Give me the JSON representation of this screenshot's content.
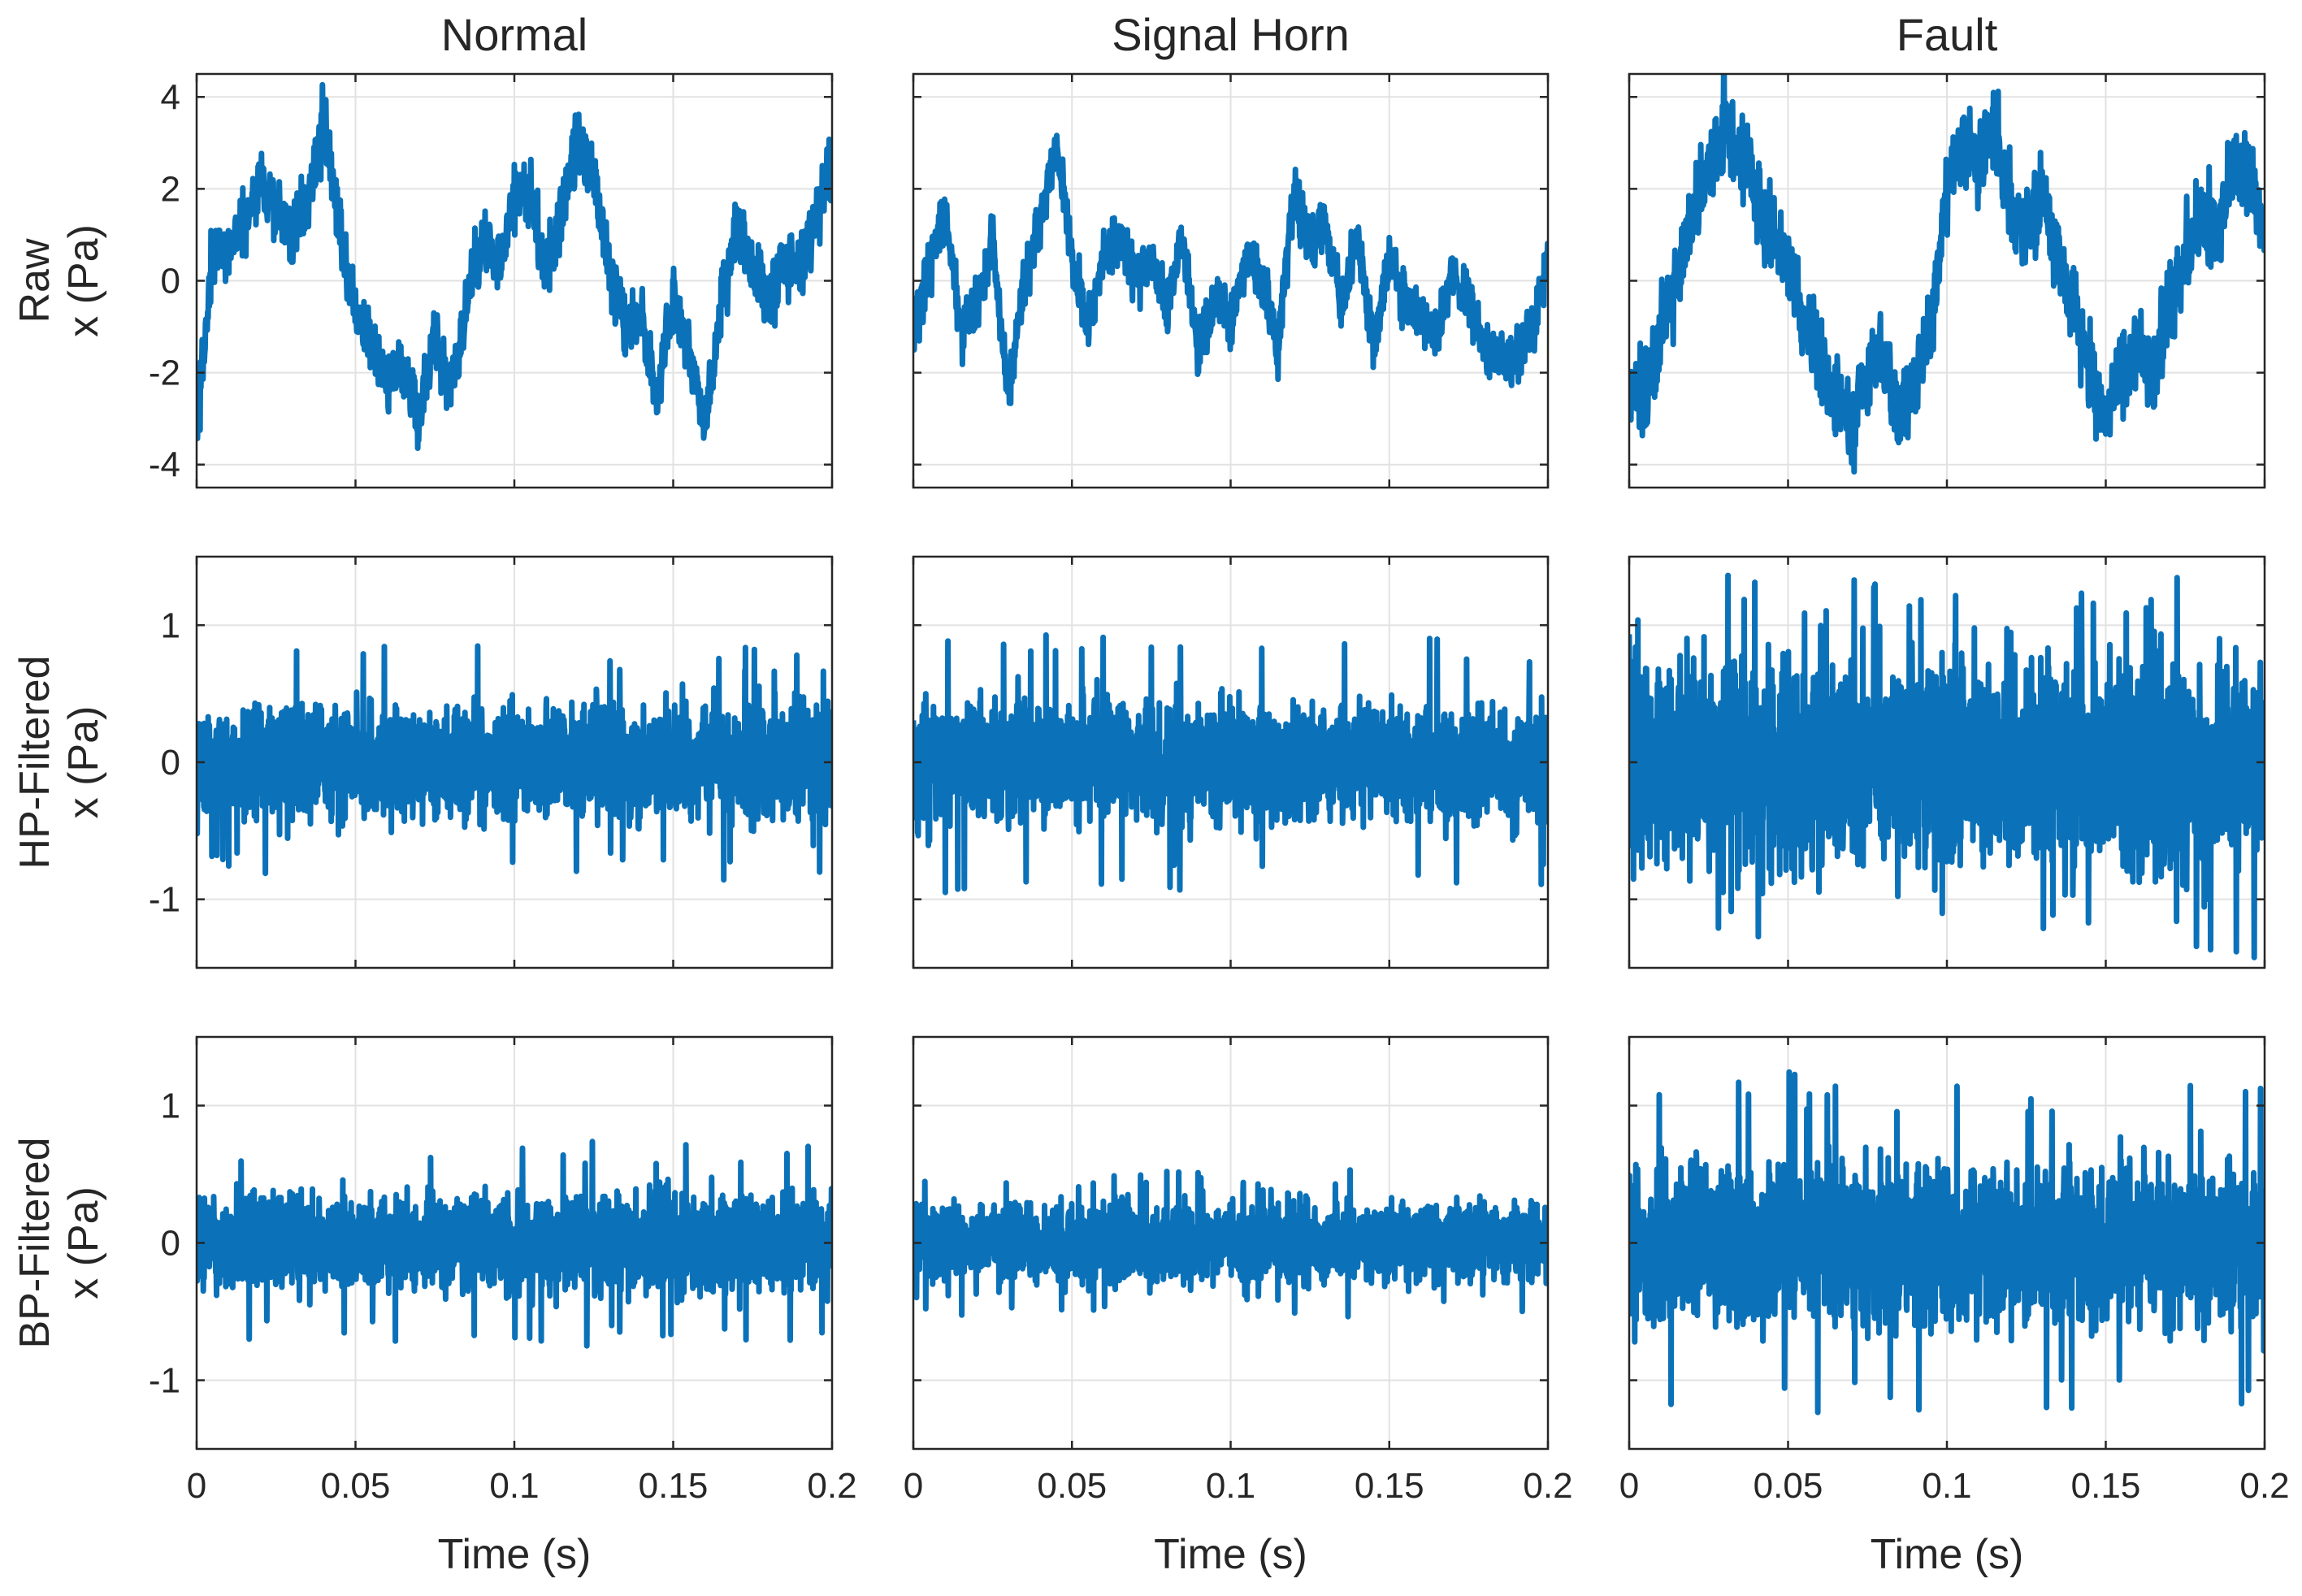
{
  "chart_data": {
    "type": "line",
    "layout": "3x3 grid of small multiples",
    "columns": [
      "Normal",
      "Signal Horn",
      "Fault"
    ],
    "rows": [
      {
        "id": "raw",
        "label_lines": [
          "Raw",
          "x (Pa)"
        ],
        "ylim": [
          -4.5,
          4.5
        ],
        "yticks": [
          4,
          2,
          0,
          -2,
          -4
        ],
        "ytick_labels": [
          "4",
          "2",
          "0",
          "-2",
          "-4"
        ]
      },
      {
        "id": "hp",
        "label_lines": [
          "HP-Filtered",
          "x (Pa)"
        ],
        "ylim": [
          -1.5,
          1.5
        ],
        "yticks": [
          1,
          0,
          -1
        ],
        "ytick_labels": [
          "1",
          "0",
          "-1"
        ]
      },
      {
        "id": "bp",
        "label_lines": [
          "BP-Filtered",
          "x (Pa)"
        ],
        "ylim": [
          -1.5,
          1.5
        ],
        "yticks": [
          1,
          0,
          -1
        ],
        "ytick_labels": [
          "1",
          "0",
          "-1"
        ]
      }
    ],
    "xlabel": "Time (s)",
    "xlim": [
      0,
      0.2
    ],
    "xticks": [
      0,
      0.05,
      0.1,
      0.15,
      0.2
    ],
    "xtick_labels": [
      "0",
      "0.05",
      "0.1",
      "0.15",
      "0.2"
    ],
    "grid": true,
    "line_color": "#0b72b9",
    "panels": {
      "Normal": {
        "raw": {
          "x": [
            0,
            0.005,
            0.01,
            0.015,
            0.02,
            0.025,
            0.03,
            0.035,
            0.04,
            0.045,
            0.05,
            0.055,
            0.06,
            0.065,
            0.07,
            0.075,
            0.08,
            0.085,
            0.09,
            0.095,
            0.1,
            0.105,
            0.11,
            0.115,
            0.12,
            0.125,
            0.13,
            0.135,
            0.14,
            0.145,
            0.15,
            0.155,
            0.16,
            0.165,
            0.17,
            0.175,
            0.18,
            0.185,
            0.19,
            0.195,
            0.2
          ],
          "y": [
            -3.3,
            0.5,
            0.8,
            1.2,
            2.2,
            1.5,
            1.0,
            1.8,
            3.4,
            1.0,
            -0.5,
            -1.5,
            -2.2,
            -1.8,
            -3.0,
            -1.2,
            -2.3,
            -0.5,
            0.8,
            0.5,
            1.8,
            2.0,
            0.2,
            1.5,
            3.0,
            2.2,
            0.3,
            -1.0,
            -0.8,
            -2.5,
            -0.5,
            -1.5,
            -3.2,
            -0.5,
            1.0,
            0.3,
            -0.5,
            0.5,
            0.2,
            1.5,
            2.5
          ],
          "noise": 0.35
        },
        "hp": {
          "amp": 0.2,
          "spike": 0.88
        },
        "bp": {
          "amp": 0.17,
          "spike": 0.75
        }
      },
      "Signal Horn": {
        "raw": {
          "x": [
            0,
            0.005,
            0.01,
            0.015,
            0.02,
            0.025,
            0.03,
            0.035,
            0.04,
            0.045,
            0.05,
            0.055,
            0.06,
            0.065,
            0.07,
            0.075,
            0.08,
            0.085,
            0.09,
            0.095,
            0.1,
            0.105,
            0.11,
            0.115,
            0.12,
            0.125,
            0.13,
            0.135,
            0.14,
            0.145,
            0.15,
            0.155,
            0.16,
            0.165,
            0.17,
            0.175,
            0.18,
            0.185,
            0.19,
            0.195,
            0.2
          ],
          "y": [
            -1.0,
            0.2,
            1.5,
            -1.0,
            -0.5,
            0.8,
            -2.5,
            0.0,
            1.2,
            3.0,
            0.5,
            -1.0,
            0.5,
            1.0,
            0.0,
            0.5,
            -0.5,
            0.8,
            -1.5,
            -0.3,
            -1.0,
            0.5,
            0.0,
            -1.5,
            2.0,
            0.8,
            1.2,
            -0.5,
            1.0,
            -1.5,
            0.5,
            -0.5,
            -0.7,
            -1.2,
            0.2,
            -0.5,
            -1.5,
            -1.6,
            -1.8,
            -1.0,
            0.5
          ],
          "noise": 0.3
        },
        "hp": {
          "amp": 0.2,
          "spike": 0.95
        },
        "bp": {
          "amp": 0.14,
          "spike": 0.55
        }
      },
      "Fault": {
        "raw": {
          "x": [
            0,
            0.005,
            0.01,
            0.015,
            0.02,
            0.025,
            0.03,
            0.035,
            0.04,
            0.045,
            0.05,
            0.055,
            0.06,
            0.065,
            0.07,
            0.075,
            0.08,
            0.085,
            0.09,
            0.095,
            0.1,
            0.105,
            0.11,
            0.115,
            0.12,
            0.125,
            0.13,
            0.135,
            0.14,
            0.145,
            0.15,
            0.155,
            0.16,
            0.165,
            0.17,
            0.175,
            0.18,
            0.185,
            0.19,
            0.195,
            0.2
          ],
          "y": [
            -2.2,
            -2.5,
            -1.2,
            0.0,
            1.5,
            2.5,
            3.5,
            2.8,
            2.0,
            1.0,
            0.5,
            -1.0,
            -1.8,
            -2.5,
            -3.2,
            -2.0,
            -1.5,
            -3.0,
            -2.0,
            -1.0,
            2.0,
            3.2,
            2.5,
            3.5,
            1.5,
            1.2,
            1.8,
            0.5,
            -0.5,
            -2.0,
            -3.0,
            -1.8,
            -1.5,
            -2.2,
            -0.5,
            0.5,
            1.5,
            1.0,
            2.5,
            2.3,
            1.0
          ],
          "noise": 0.45
        },
        "hp": {
          "amp": 0.38,
          "spike": 1.45
        },
        "bp": {
          "amp": 0.28,
          "spike": 1.25
        }
      }
    }
  }
}
